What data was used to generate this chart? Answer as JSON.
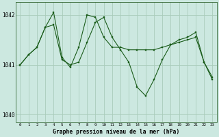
{
  "title": "Graphe pression niveau de la mer (hPa)",
  "bg_color": "#cce8e0",
  "grid_color": "#aaccbb",
  "line_color": "#1a5c1a",
  "marker_color": "#1a5c1a",
  "x_ticks": [
    0,
    1,
    2,
    3,
    4,
    5,
    6,
    7,
    8,
    9,
    10,
    11,
    12,
    13,
    14,
    15,
    16,
    17,
    18,
    19,
    20,
    21,
    22,
    23
  ],
  "ylim": [
    1039.85,
    1042.25
  ],
  "yticks": [
    1040,
    1041,
    1042
  ],
  "series1_x": [
    0,
    1,
    2,
    3,
    4,
    5,
    6,
    7,
    8,
    9,
    10,
    11,
    12,
    13,
    14,
    15,
    16,
    17,
    18,
    19,
    20,
    21,
    22,
    23
  ],
  "series1_y": [
    1041.0,
    1041.2,
    1041.35,
    1041.75,
    1041.8,
    1041.1,
    1041.0,
    1041.05,
    1041.45,
    1041.85,
    1041.95,
    1041.55,
    1041.3,
    1041.05,
    1040.55,
    1040.38,
    1040.7,
    1041.1,
    1041.4,
    1041.5,
    1041.55,
    1041.65,
    1041.05,
    1040.75
  ],
  "series2_x": [
    0,
    1,
    2,
    3,
    4,
    5,
    6,
    7,
    8,
    9,
    10,
    11,
    12,
    13,
    14,
    15,
    16,
    17,
    18,
    19,
    20,
    21,
    22,
    23
  ],
  "series2_y": [
    1041.0,
    1041.2,
    1041.35,
    1041.75,
    1042.05,
    1041.15,
    1040.95,
    1041.35,
    1042.0,
    1041.95,
    1041.55,
    1041.35,
    1041.35,
    1041.3,
    1041.3,
    1041.3,
    1041.3,
    1041.35,
    1041.4,
    1041.45,
    1041.5,
    1041.55,
    1041.05,
    1040.7
  ],
  "figsize": [
    3.2,
    2.0
  ],
  "dpi": 100
}
